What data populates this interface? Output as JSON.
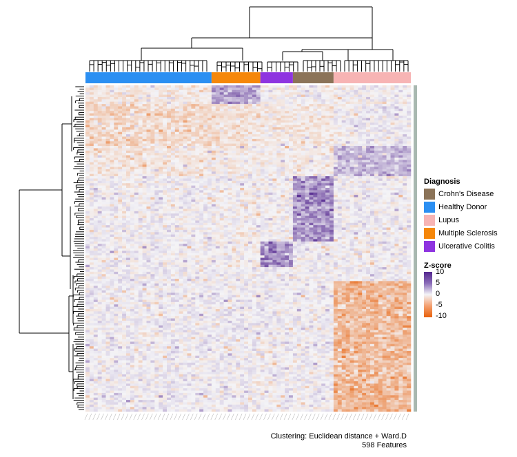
{
  "chart_data": {
    "type": "heatmap",
    "samples": 80,
    "features": 598,
    "groups": [
      {
        "name": "Healthy Donor",
        "color": "#2b8ff2",
        "count": 31
      },
      {
        "name": "Multiple Sclerosis",
        "color": "#f5870a",
        "count": 12
      },
      {
        "name": "Ulcerative Colitis",
        "color": "#8e34e0",
        "count": 8
      },
      {
        "name": "Crohn's Disease",
        "color": "#8b7358",
        "count": 10
      },
      {
        "name": "Lupus",
        "color": "#f7b4b4",
        "count": 19
      }
    ],
    "column_order_groups": [
      "Healthy Donor",
      "Multiple Sclerosis",
      "Ulcerative Colitis",
      "Crohn's Disease",
      "Lupus"
    ],
    "legend": {
      "diagnosis_title": "Diagnosis",
      "diagnosis_items": [
        {
          "label": "Crohn's Disease",
          "color": "#8b7358"
        },
        {
          "label": "Healthy Donor",
          "color": "#2b8ff2"
        },
        {
          "label": "Lupus",
          "color": "#f7b4b4"
        },
        {
          "label": "Multiple Sclerosis",
          "color": "#f5870a"
        },
        {
          "label": "Ulcerative Colitis",
          "color": "#8e34e0"
        }
      ],
      "zscore_title": "Z-score",
      "zscore_ticks": [
        10,
        5,
        0,
        -5,
        -10
      ],
      "zscore_colors": {
        "high": "#54278f",
        "mid": "#f4f4f7",
        "low": "#e8600a"
      }
    },
    "zlim": [
      -10,
      10
    ],
    "footer_line1": "Clustering: Euclidean distance + Ward.D",
    "footer_line2": "598 Features"
  }
}
